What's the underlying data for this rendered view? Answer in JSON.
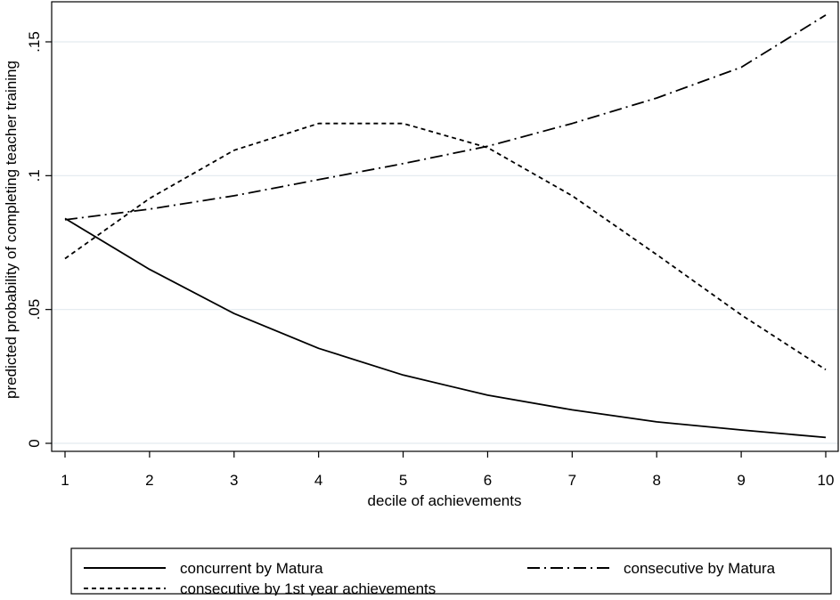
{
  "chart_data": {
    "type": "line",
    "title": "",
    "xlabel": "decile of achievements",
    "ylabel": "predicted probability of completing teacher training",
    "x": [
      1,
      2,
      3,
      4,
      5,
      6,
      7,
      8,
      9,
      10
    ],
    "xticks": [
      "1",
      "2",
      "3",
      "4",
      "5",
      "6",
      "7",
      "8",
      "9",
      "10"
    ],
    "yticks": [
      {
        "value": 0,
        "label": "0"
      },
      {
        "value": 0.05,
        "label": ".05"
      },
      {
        "value": 0.1,
        "label": ".1"
      },
      {
        "value": 0.15,
        "label": ".15"
      }
    ],
    "xlim": [
      1,
      10
    ],
    "ylim": [
      -0.002,
      0.165
    ],
    "grid": "horizontal",
    "legend_position": "bottom",
    "series": [
      {
        "name": "concurrent by Matura",
        "style": "solid",
        "values": [
          0.084,
          0.065,
          0.0485,
          0.0355,
          0.0255,
          0.018,
          0.0125,
          0.008,
          0.005,
          0.0022
        ]
      },
      {
        "name": "consecutive by Matura",
        "style": "dashdot",
        "values": [
          0.0835,
          0.0875,
          0.0925,
          0.0985,
          0.1045,
          0.111,
          0.1195,
          0.129,
          0.1405,
          0.16
        ]
      },
      {
        "name": "consecutive by 1st year achievements",
        "style": "dashed",
        "values": [
          0.069,
          0.0915,
          0.1095,
          0.1195,
          0.1195,
          0.1105,
          0.0925,
          0.0705,
          0.048,
          0.0275
        ]
      }
    ]
  }
}
